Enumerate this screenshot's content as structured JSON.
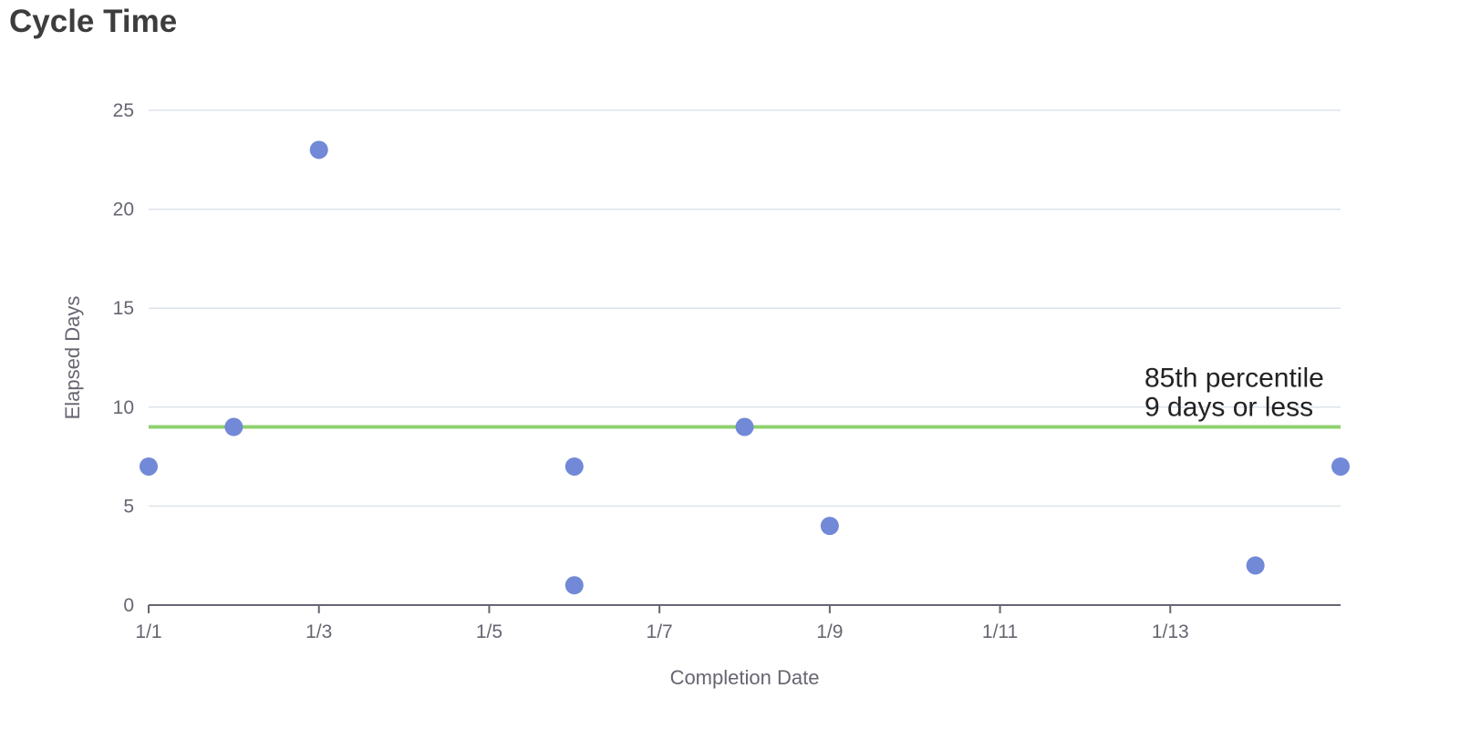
{
  "title": "Cycle Time",
  "chart_data": {
    "type": "scatter",
    "title": "Cycle Time",
    "xlabel": "Completion Date",
    "ylabel": "Elapsed Days",
    "x_ticks": [
      "1/1",
      "1/3",
      "1/5",
      "1/7",
      "1/9",
      "1/11",
      "1/13"
    ],
    "xlim": [
      "1/1",
      "1/15"
    ],
    "ylim": [
      0,
      25
    ],
    "y_ticks": [
      0,
      5,
      10,
      15,
      20,
      25
    ],
    "grid": true,
    "points": [
      {
        "x": "1/1",
        "y": 7
      },
      {
        "x": "1/2",
        "y": 9
      },
      {
        "x": "1/3",
        "y": 23
      },
      {
        "x": "1/6",
        "y": 7
      },
      {
        "x": "1/6",
        "y": 1
      },
      {
        "x": "1/8",
        "y": 9
      },
      {
        "x": "1/9",
        "y": 4
      },
      {
        "x": "1/14",
        "y": 2
      },
      {
        "x": "1/15",
        "y": 7
      }
    ],
    "reference_line": {
      "y": 9,
      "label_lines": [
        "85th percentile",
        "9 days or less"
      ],
      "color": "#8fd16f"
    },
    "point_color": "#7189d6",
    "grid_color": "#dde3ea",
    "axis_color": "#666672"
  }
}
